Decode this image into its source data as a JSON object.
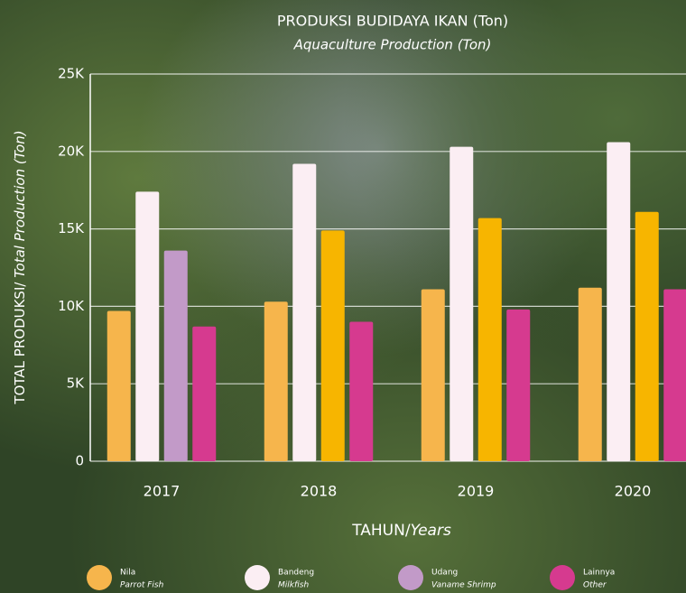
{
  "chart_data": {
    "type": "bar",
    "title": "PRODUKSI BUDIDAYA IKAN (Ton)",
    "subtitle": "Aquaculture Production (Ton)",
    "y_label": "TOTAL PRODUKSI/",
    "y_label_en": "Total Production (Ton)",
    "x_label": "TAHUN/",
    "x_label_en": "Years",
    "categories": [
      "2017",
      "2018",
      "2019",
      "2020"
    ],
    "series": [
      {
        "name": "Nila",
        "name_en": "Parrot Fish",
        "color": "#f6b54c",
        "values": [
          9700,
          10300,
          11100,
          11200
        ]
      },
      {
        "name": "Bandeng",
        "name_en": "Milkfish",
        "color": "#fbeef3",
        "values": [
          17400,
          19200,
          20300,
          20600
        ]
      },
      {
        "name": "Udang",
        "name_en": "Vaname Shrimp",
        "color": "#c29ac8",
        "colors": [
          "#c29ac8",
          "#f7b500",
          "#f7b500",
          "#f7b500"
        ],
        "values": [
          13600,
          14900,
          15700,
          16100
        ]
      },
      {
        "name": "Lainnya",
        "name_en": "Other",
        "color": "#d63a8f",
        "values": [
          8700,
          9000,
          9800,
          11100
        ]
      }
    ],
    "ylim": [
      0,
      25000
    ],
    "yticks": [
      0,
      {
        "value": 5000,
        "label": "5K"
      },
      {
        "value": 10000,
        "label": "10K"
      },
      {
        "value": 15000,
        "label": "15K"
      },
      {
        "value": 20000,
        "label": "20K"
      },
      {
        "value": 25000,
        "label": "25K"
      }
    ],
    "grid": true
  }
}
